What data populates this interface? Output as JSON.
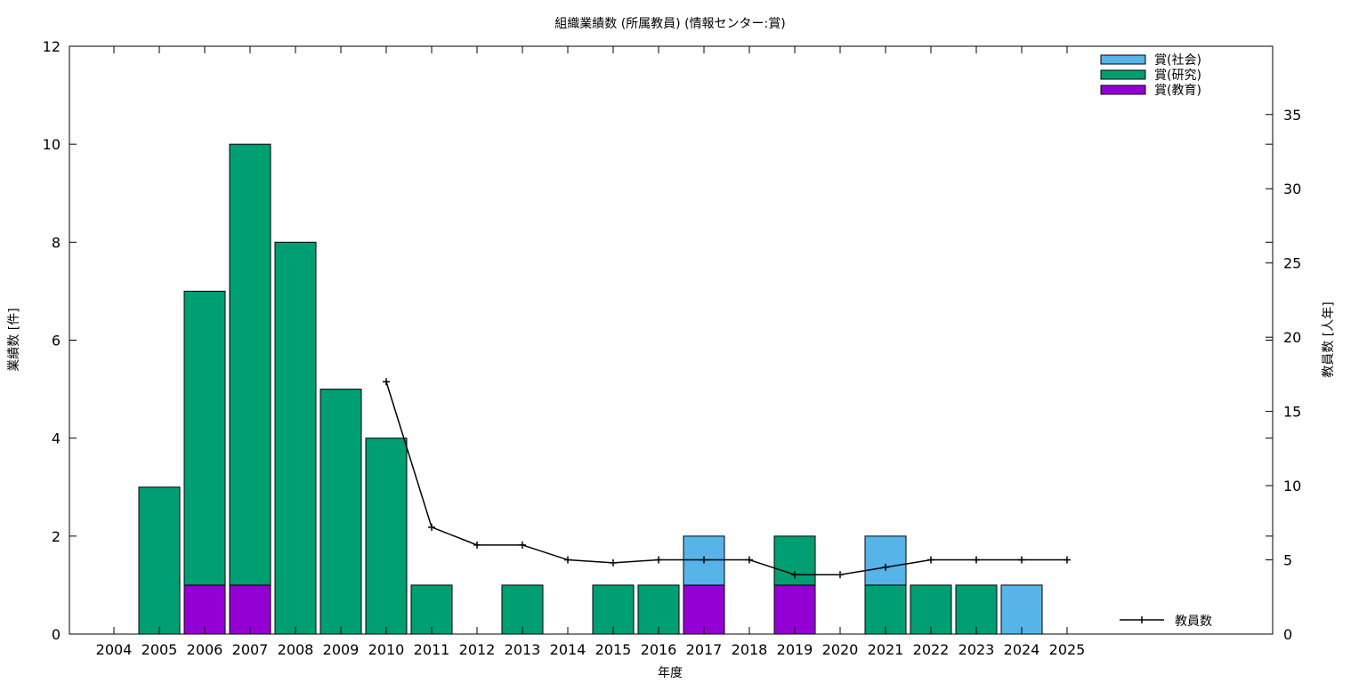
{
  "chart_data": {
    "type": "bar",
    "title": "組織業績数 (所属教員) (情報センター:賞)",
    "xlabel": "年度",
    "ylabel": "業績数 [件]",
    "y2label": "教員数 [人年]",
    "categories": [
      "2004",
      "2005",
      "2006",
      "2007",
      "2008",
      "2009",
      "2010",
      "2011",
      "2012",
      "2013",
      "2014",
      "2015",
      "2016",
      "2017",
      "2018",
      "2019",
      "2020",
      "2021",
      "2022",
      "2023",
      "2024",
      "2025"
    ],
    "ylim": [
      0,
      12
    ],
    "y2lim": [
      0,
      39.6
    ],
    "yticks": [
      0,
      2,
      4,
      6,
      8,
      10,
      12
    ],
    "y2ticks": [
      0,
      5,
      10,
      15,
      20,
      25,
      30,
      35
    ],
    "stacked": true,
    "grid": false,
    "legend_position": "top-right",
    "series": [
      {
        "name": "賞(教育)",
        "color": "#9400d3",
        "values": [
          0,
          0,
          1,
          1,
          0,
          0,
          0,
          0,
          0,
          0,
          0,
          0,
          0,
          1,
          0,
          1,
          0,
          0,
          0,
          0,
          0,
          0
        ]
      },
      {
        "name": "賞(研究)",
        "color": "#009e73",
        "values": [
          0,
          3,
          6,
          9,
          8,
          5,
          4,
          1,
          0,
          1,
          0,
          1,
          1,
          0,
          0,
          1,
          0,
          1,
          1,
          1,
          0,
          0
        ]
      },
      {
        "name": "賞(社会)",
        "color": "#56b4e9",
        "values": [
          0,
          0,
          0,
          0,
          0,
          0,
          0,
          0,
          0,
          0,
          0,
          0,
          0,
          1,
          0,
          0,
          0,
          1,
          0,
          0,
          1,
          0
        ]
      }
    ],
    "line_series": {
      "name": "教員数",
      "color": "#000000",
      "axis": "right",
      "x": [
        "2010",
        "2011",
        "2012",
        "2013",
        "2014",
        "2015",
        "2016",
        "2017",
        "2018",
        "2019",
        "2020",
        "2021",
        "2022",
        "2023",
        "2024",
        "2025"
      ],
      "values": [
        17,
        7.2,
        6,
        6,
        5,
        4.8,
        5,
        5,
        5,
        4,
        4,
        4.5,
        5,
        5,
        5,
        5
      ]
    },
    "legend_order": [
      "賞(社会)",
      "賞(研究)",
      "賞(教育)"
    ]
  }
}
